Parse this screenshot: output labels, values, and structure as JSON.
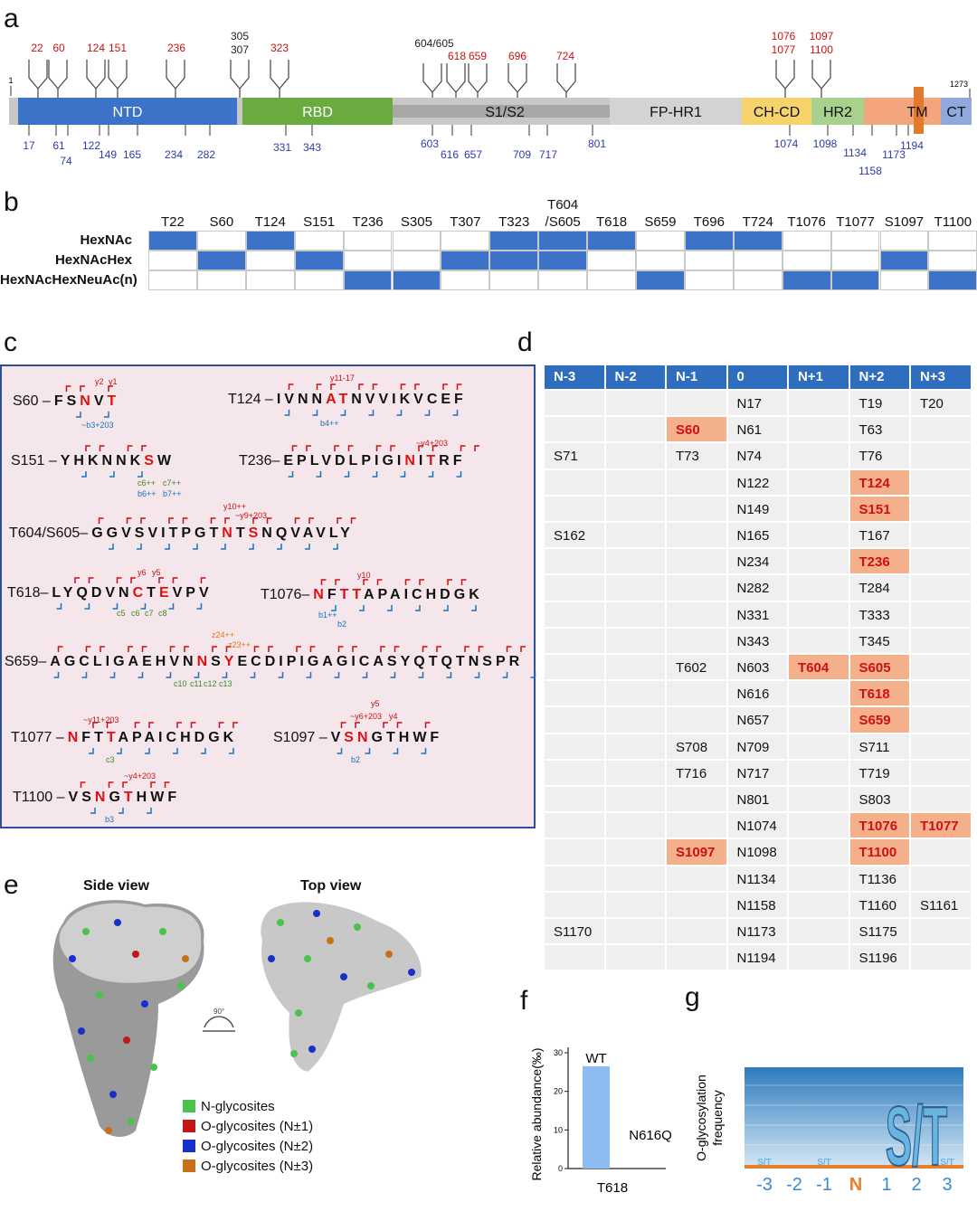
{
  "panels": {
    "a": "a",
    "b": "b",
    "c": "c",
    "d": "d",
    "e": "e",
    "f": "f",
    "g": "g"
  },
  "panel_a": {
    "domains": [
      {
        "label": "NTD",
        "color": "#3c73c8"
      },
      {
        "label": "RBD",
        "color": "#6aab3f"
      },
      {
        "label": "S1/S2",
        "color": "#a7a7a7"
      },
      {
        "label": "FP-HR1",
        "color": "#d3d3d3"
      },
      {
        "label": "CH-CD",
        "color": "#f7d36b"
      },
      {
        "label": "HR2",
        "color": "#a9d18e"
      },
      {
        "label": "TM",
        "color": "#e07a2c"
      },
      {
        "label": "CT",
        "color": "#8fa9dc"
      }
    ],
    "start": "1",
    "end": "1273",
    "top_labels": [
      "22",
      "60",
      "124",
      "151",
      "236",
      "305",
      "307",
      "323",
      "604/605",
      "618",
      "659",
      "696",
      "724",
      "1076",
      "1077",
      "1097",
      "1100"
    ],
    "bottom_labels": [
      "17",
      "61",
      "74",
      "122",
      "149",
      "165",
      "234",
      "282",
      "331",
      "343",
      "603",
      "616",
      "657",
      "709",
      "717",
      "801",
      "1074",
      "1098",
      "1134",
      "1158",
      "1173",
      "1194"
    ]
  },
  "panel_b": {
    "sites": [
      "T22",
      "S60",
      "T124",
      "S151",
      "T236",
      "S305",
      "T307",
      "T323",
      "T604\n/S605",
      "T618",
      "S659",
      "T696",
      "T724",
      "T1076",
      "T1077",
      "S1097",
      "T1100"
    ],
    "rows": [
      "HexNAc",
      "HexNAcHex",
      "HexNAcHexNeuAc(n)"
    ],
    "matrix": [
      [
        1,
        0,
        1,
        0,
        0,
        0,
        0,
        1,
        1,
        1,
        0,
        1,
        1,
        0,
        0,
        0,
        0
      ],
      [
        0,
        1,
        0,
        1,
        0,
        0,
        1,
        1,
        1,
        0,
        0,
        0,
        0,
        0,
        0,
        1,
        0
      ],
      [
        0,
        0,
        0,
        0,
        1,
        1,
        0,
        0,
        0,
        0,
        1,
        0,
        0,
        1,
        1,
        0,
        1
      ]
    ],
    "fill_color": "#3c73c8"
  },
  "panel_c": {
    "peptides": [
      {
        "site": "S60 –",
        "seq": "FSNVT"
      },
      {
        "site": "T124 –",
        "seq": "IVNNATNVVIKVCEF"
      },
      {
        "site": "S151 –",
        "seq": "YHKNNKSW"
      },
      {
        "site": "T236–",
        "seq": "EPLVDLPIGINITRF"
      },
      {
        "site": "T604/S605–",
        "seq": "GGVSVITPGTNTSNQVAVLY"
      },
      {
        "site": "T618–",
        "seq": "LYQDVNCTEVPV"
      },
      {
        "site": "T1076–",
        "seq": "NFTTAPAICHDGK"
      },
      {
        "site": "S659–",
        "seq": "AGCLIGAEHVNNSYECDIPIGAGICASYQTQTNSPR"
      },
      {
        "site": "T1077 –",
        "seq": "NFTTAPAICHDGK"
      },
      {
        "site": "S1097 –",
        "seq": "VSNGTHWF"
      },
      {
        "site": "T1100 –",
        "seq": "VSNGTHWF"
      }
    ],
    "fragments": [
      "y2",
      "y1",
      "~b3+203",
      "y11-17",
      "b4++",
      "c6++",
      "c7++",
      "b6++",
      "b7++",
      "~y4+203",
      "y10++",
      "~y9+203",
      "y6",
      "y5",
      "c5",
      "c6",
      "c7",
      "c8",
      "y10",
      "b1++",
      "b2",
      "z24++",
      "z23++",
      "c10",
      "c11",
      "c12",
      "c13",
      "~y11+203",
      "c3",
      "y5",
      "~y6+203",
      "y4",
      "b2",
      "~y4+203",
      "b3"
    ]
  },
  "panel_d": {
    "headers": [
      "N-3",
      "N-2",
      "N-1",
      "0",
      "N+1",
      "N+2",
      "N+3"
    ],
    "rows": [
      [
        "",
        "",
        "",
        "N17",
        "",
        "T19",
        "T20"
      ],
      [
        "",
        "",
        "S60",
        "N61",
        "",
        "T63",
        ""
      ],
      [
        "S71",
        "",
        "T73",
        "N74",
        "",
        "T76",
        ""
      ],
      [
        "",
        "",
        "",
        "N122",
        "",
        "T124",
        ""
      ],
      [
        "",
        "",
        "",
        "N149",
        "",
        "S151",
        ""
      ],
      [
        "S162",
        "",
        "",
        "N165",
        "",
        "T167",
        ""
      ],
      [
        "",
        "",
        "",
        "N234",
        "",
        "T236",
        ""
      ],
      [
        "",
        "",
        "",
        "N282",
        "",
        "T284",
        ""
      ],
      [
        "",
        "",
        "",
        "N331",
        "",
        "T333",
        ""
      ],
      [
        "",
        "",
        "",
        "N343",
        "",
        "T345",
        ""
      ],
      [
        "",
        "",
        "T602",
        "N603",
        "T604",
        "S605",
        ""
      ],
      [
        "",
        "",
        "",
        "N616",
        "",
        "T618",
        ""
      ],
      [
        "",
        "",
        "",
        "N657",
        "",
        "S659",
        ""
      ],
      [
        "",
        "",
        "S708",
        "N709",
        "",
        "S711",
        ""
      ],
      [
        "",
        "",
        "T716",
        "N717",
        "",
        "T719",
        ""
      ],
      [
        "",
        "",
        "",
        "N801",
        "",
        "S803",
        ""
      ],
      [
        "",
        "",
        "",
        "N1074",
        "",
        "T1076",
        "T1077"
      ],
      [
        "",
        "",
        "S1097",
        "N1098",
        "",
        "T1100",
        ""
      ],
      [
        "",
        "",
        "",
        "N1134",
        "",
        "T1136",
        ""
      ],
      [
        "",
        "",
        "",
        "N1158",
        "",
        "T1160",
        "S1161"
      ],
      [
        "S1170",
        "",
        "",
        "N1173",
        "",
        "S1175",
        ""
      ],
      [
        "",
        "",
        "",
        "N1194",
        "",
        "S1196",
        ""
      ]
    ],
    "highlighted": [
      [
        1,
        2
      ],
      [
        3,
        5
      ],
      [
        4,
        5
      ],
      [
        6,
        5
      ],
      [
        10,
        4
      ],
      [
        10,
        5
      ],
      [
        11,
        5
      ],
      [
        12,
        5
      ],
      [
        16,
        5
      ],
      [
        16,
        6
      ],
      [
        17,
        2
      ],
      [
        17,
        5
      ]
    ]
  },
  "panel_e": {
    "side_view": "Side view",
    "top_view": "Top view",
    "rotation": "90°",
    "legend": [
      {
        "label": "N-glycosites",
        "color": "#4cc24c"
      },
      {
        "label": "O-glycosites (N±1)",
        "color": "#c01818"
      },
      {
        "label": "O-glycosites (N±2)",
        "color": "#1830c8"
      },
      {
        "label": "O-glycosites (N±3)",
        "color": "#c87018"
      }
    ]
  },
  "chart_data": [
    {
      "type": "bar",
      "categories": [
        "WT",
        "N616Q"
      ],
      "values": [
        26.5,
        0
      ],
      "ylabel": "Relative abundance(‰)",
      "xlabel": "T618",
      "yticks": [
        0,
        10,
        20,
        30
      ],
      "ylim": [
        0,
        30
      ],
      "bar_color": "#8cbcf0"
    },
    {
      "type": "sequence-logo",
      "ylabel": "O-glycosylation frequency",
      "positions": [
        "-3",
        "-2",
        "-1",
        "N",
        "1",
        "2",
        "3"
      ],
      "letters": [
        {
          "position": "-3",
          "label": "S/T"
        },
        {
          "position": "-1",
          "label": "S/T"
        },
        {
          "position": "2",
          "label": "S/T"
        },
        {
          "position": "3",
          "label": "S/T"
        }
      ]
    }
  ]
}
